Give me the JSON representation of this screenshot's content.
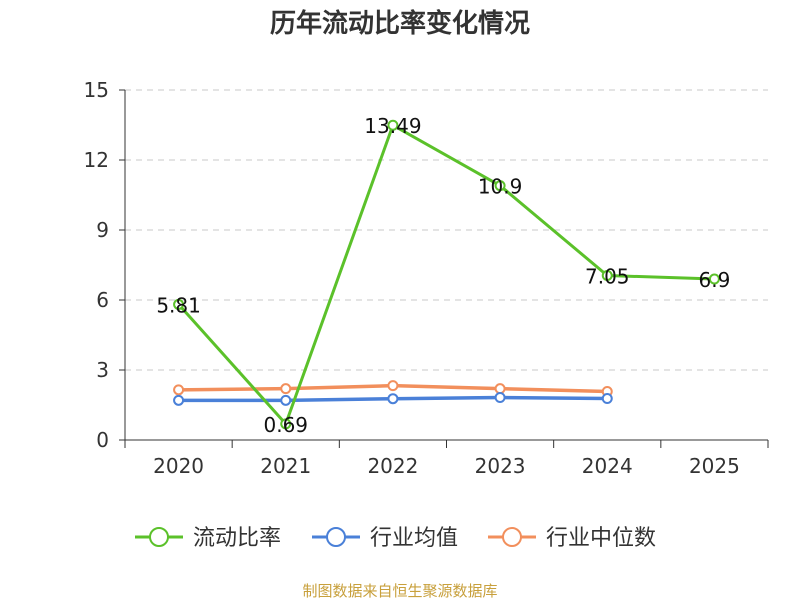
{
  "chart_data": {
    "type": "line",
    "title": "历年流动比率变化情况",
    "categories": [
      "2020",
      "2021",
      "2022",
      "2023",
      "2024",
      "2025"
    ],
    "ylim": [
      0,
      15
    ],
    "yticks": [
      0,
      3,
      6,
      9,
      12,
      15
    ],
    "grid": true,
    "legend_position": "bottom",
    "series": [
      {
        "name": "流动比率",
        "color": "#5bc12a",
        "values": [
          5.81,
          0.69,
          13.49,
          10.9,
          7.05,
          6.9
        ],
        "data_labels": [
          "5.81",
          "0.69",
          "13.49",
          "10.9",
          "7.05",
          "6.9"
        ]
      },
      {
        "name": "行业均值",
        "color": "#4a80d8",
        "values": [
          1.7,
          1.7,
          1.77,
          1.82,
          1.78,
          null
        ]
      },
      {
        "name": "行业中位数",
        "color": "#f28f5c",
        "values": [
          2.15,
          2.2,
          2.33,
          2.2,
          2.08,
          null
        ]
      }
    ]
  },
  "source": "制图数据来自恒生聚源数据库"
}
